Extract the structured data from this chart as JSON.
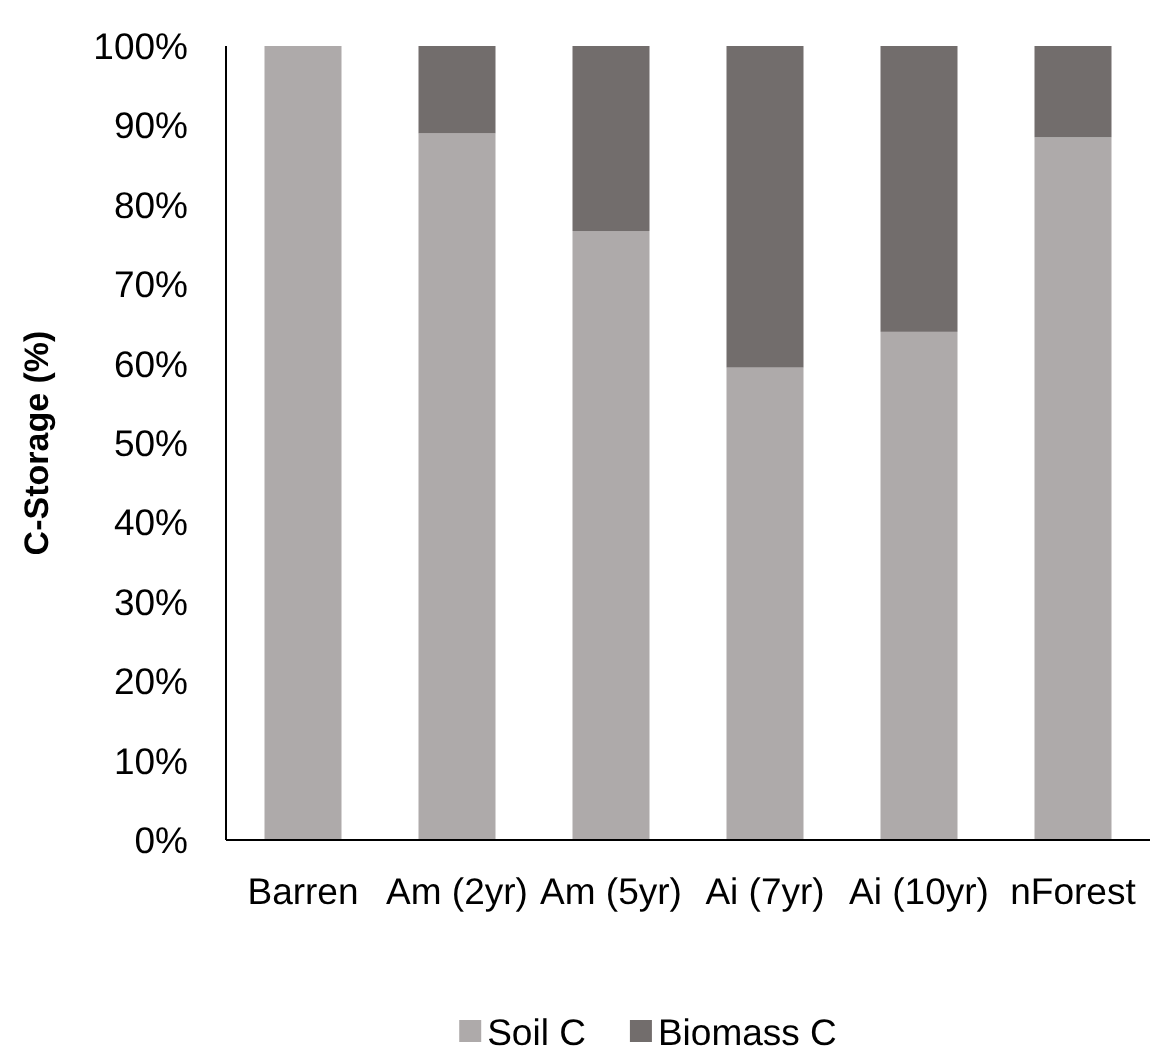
{
  "chart_data": {
    "type": "bar",
    "stacked": true,
    "ylabel": "C-Storage (%)",
    "categories": [
      "Barren",
      "Am (2yr)",
      "Am (5yr)",
      "Ai (7yr)",
      "Ai (10yr)",
      "nForest"
    ],
    "series": [
      {
        "name": "Soil C",
        "color": "#aeaaaa",
        "values": [
          100,
          89.0,
          76.7,
          59.5,
          64.0,
          88.5
        ]
      },
      {
        "name": "Biomass C",
        "color": "#726d6c",
        "values": [
          0,
          11.0,
          23.3,
          40.5,
          36.0,
          11.5
        ]
      }
    ],
    "ylim": [
      0,
      100
    ],
    "yticks": [
      {
        "value": 0,
        "label": "0%"
      },
      {
        "value": 10,
        "label": "10%"
      },
      {
        "value": 20,
        "label": "20%"
      },
      {
        "value": 30,
        "label": "30%"
      },
      {
        "value": 40,
        "label": "40%"
      },
      {
        "value": 50,
        "label": "50%"
      },
      {
        "value": 60,
        "label": "60%"
      },
      {
        "value": 70,
        "label": "70%"
      },
      {
        "value": 80,
        "label": "80%"
      },
      {
        "value": 90,
        "label": "90%"
      },
      {
        "value": 100,
        "label": "100%"
      }
    ],
    "grid": false,
    "legend": "bottom"
  }
}
